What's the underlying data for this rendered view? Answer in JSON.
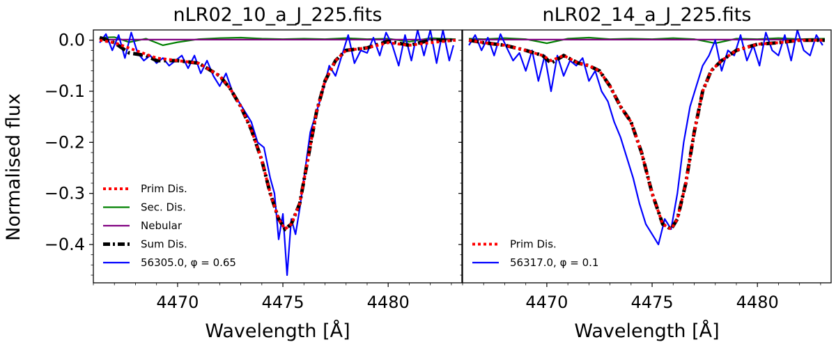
{
  "chart_data": {
    "type": "line",
    "ylabel": "Normalised flux",
    "xlabel": "Wavelength [Å]",
    "xlim": [
      4466,
      4483.5
    ],
    "ylim": [
      -0.475,
      0.02
    ],
    "xticks": [
      4470,
      4475,
      4480
    ],
    "yticks": [
      0.0,
      -0.1,
      -0.2,
      -0.3,
      -0.4
    ],
    "ytick_labels": [
      "0.0",
      "−0.1",
      "−0.2",
      "−0.3",
      "−0.4"
    ],
    "xtick_labels": [
      "4470",
      "4475",
      "4480"
    ],
    "panels": [
      {
        "title": "nLR02_10_a_J_225.fits",
        "legend": [
          "Prim Dis.",
          "Sec. Dis.",
          "Nebular",
          "Sum Dis.",
          "56305.0, φ = 0.65"
        ],
        "prim": {
          "x": [
            4466.3,
            4467,
            4468,
            4469,
            4470,
            4471,
            4472,
            4472.5,
            4473,
            4473.5,
            4474,
            4474.4,
            4474.8,
            4475.1,
            4475.4,
            4475.8,
            4476.2,
            4476.6,
            4477,
            4477.5,
            4478,
            4479,
            4480,
            4481,
            4482,
            4483.2
          ],
          "y": [
            0.0,
            -0.005,
            -0.02,
            -0.035,
            -0.04,
            -0.045,
            -0.07,
            -0.095,
            -0.13,
            -0.175,
            -0.235,
            -0.3,
            -0.35,
            -0.37,
            -0.36,
            -0.32,
            -0.23,
            -0.14,
            -0.08,
            -0.04,
            -0.02,
            -0.015,
            -0.005,
            -0.01,
            -0.005,
            0.0
          ]
        },
        "sec": {
          "x": [
            4466.3,
            4467,
            4467.7,
            4468.5,
            4469.3,
            4470,
            4471,
            4472,
            4473,
            4474,
            4475,
            4476,
            4477,
            4478,
            4479,
            4480,
            4481,
            4482,
            4483.2
          ],
          "y": [
            0.005,
            0.006,
            -0.004,
            0.003,
            -0.01,
            -0.004,
            0.002,
            0.004,
            0.005,
            0.003,
            0.002,
            0.003,
            0.002,
            0.004,
            0.002,
            0.003,
            -0.003,
            0.004,
            0.002
          ]
        },
        "nebular": {
          "x": [
            4466.3,
            4483.2
          ],
          "y": [
            0.001,
            0.001
          ]
        },
        "sum": {
          "x": [
            4466.3,
            4467,
            4467.7,
            4468.5,
            4469,
            4470,
            4471,
            4472,
            4472.5,
            4473,
            4473.5,
            4474,
            4474.4,
            4474.8,
            4475.1,
            4475.4,
            4475.8,
            4476.2,
            4476.6,
            4477,
            4477.5,
            4478,
            4479,
            4480,
            4481,
            4482,
            4483.2
          ],
          "y": [
            0.005,
            -0.005,
            -0.025,
            -0.03,
            -0.04,
            -0.04,
            -0.045,
            -0.07,
            -0.095,
            -0.13,
            -0.175,
            -0.235,
            -0.3,
            -0.35,
            -0.37,
            -0.36,
            -0.32,
            -0.23,
            -0.14,
            -0.08,
            -0.04,
            -0.02,
            -0.015,
            -0.002,
            -0.01,
            0.0,
            0.0
          ]
        },
        "obs": {
          "x": [
            4466.3,
            4466.6,
            4466.9,
            4467.2,
            4467.5,
            4467.8,
            4468.1,
            4468.4,
            4468.7,
            4469.0,
            4469.3,
            4469.6,
            4469.9,
            4470.2,
            4470.5,
            4470.8,
            4471.1,
            4471.4,
            4471.7,
            4472.0,
            4472.3,
            4472.6,
            4472.9,
            4473.2,
            4473.5,
            4473.8,
            4474.1,
            4474.4,
            4474.6,
            4474.8,
            4475.0,
            4475.2,
            4475.4,
            4475.6,
            4475.8,
            4476.0,
            4476.3,
            4476.6,
            4476.9,
            4477.2,
            4477.5,
            4477.8,
            4478.1,
            4478.4,
            4478.7,
            4479.0,
            4479.3,
            4479.6,
            4479.9,
            4480.2,
            4480.5,
            4480.8,
            4481.1,
            4481.4,
            4481.7,
            4482.0,
            4482.3,
            4482.6,
            4482.9,
            4483.1
          ],
          "y": [
            -0.005,
            0.012,
            -0.02,
            0.01,
            -0.035,
            0.015,
            -0.025,
            -0.04,
            -0.03,
            -0.045,
            -0.035,
            -0.05,
            -0.04,
            -0.03,
            -0.055,
            -0.03,
            -0.065,
            -0.04,
            -0.07,
            -0.09,
            -0.065,
            -0.1,
            -0.12,
            -0.14,
            -0.16,
            -0.2,
            -0.21,
            -0.27,
            -0.3,
            -0.39,
            -0.34,
            -0.46,
            -0.35,
            -0.38,
            -0.33,
            -0.27,
            -0.18,
            -0.14,
            -0.1,
            -0.05,
            -0.07,
            -0.03,
            0.01,
            -0.045,
            -0.02,
            -0.025,
            0.005,
            -0.03,
            0.015,
            -0.01,
            -0.05,
            0.01,
            -0.04,
            0.02,
            -0.03,
            0.02,
            -0.045,
            0.02,
            -0.04,
            -0.01
          ]
        }
      },
      {
        "title": "nLR02_14_a_J_225.fits",
        "legend": [
          "Prim Dis.",
          "56317.0, φ = 0.1"
        ],
        "prim": {
          "x": [
            4466.3,
            4467,
            4468,
            4469,
            4469.8,
            4470.2,
            4470.8,
            4471.5,
            4472,
            4472.5,
            4473,
            4473.5,
            4474,
            4474.5,
            4475,
            4475.5,
            4475.9,
            4476.2,
            4476.6,
            4477,
            4477.4,
            4477.8,
            4478.3,
            4479,
            4480,
            4481,
            4482,
            4483.2
          ],
          "y": [
            0.0,
            -0.005,
            -0.01,
            -0.02,
            -0.03,
            -0.04,
            -0.03,
            -0.045,
            -0.05,
            -0.06,
            -0.09,
            -0.13,
            -0.16,
            -0.22,
            -0.3,
            -0.36,
            -0.37,
            -0.35,
            -0.28,
            -0.18,
            -0.1,
            -0.06,
            -0.04,
            -0.02,
            -0.008,
            -0.005,
            0.0,
            0.0
          ]
        },
        "sec": {
          "x": [
            4466.3,
            4467,
            4468,
            4469,
            4470,
            4471,
            4472,
            4473,
            4474,
            4475,
            4476,
            4477,
            4478,
            4479,
            4480,
            4481,
            4482,
            4483.2
          ],
          "y": [
            0.003,
            0.002,
            0.004,
            0.002,
            -0.006,
            0.003,
            0.005,
            0.002,
            0.003,
            0.002,
            0.004,
            0.002,
            -0.006,
            0.003,
            0.002,
            0.004,
            0.002,
            0.003
          ]
        },
        "nebular": {
          "x": [
            4466.3,
            4483.2
          ],
          "y": [
            0.001,
            0.001
          ]
        },
        "sum": {
          "x": [
            4466.3,
            4467,
            4468,
            4469,
            4469.8,
            4470.2,
            4470.8,
            4471.5,
            4472,
            4472.5,
            4473,
            4473.5,
            4474,
            4474.5,
            4475,
            4475.5,
            4475.9,
            4476.2,
            4476.6,
            4477,
            4477.4,
            4477.8,
            4478.3,
            4479,
            4480,
            4481,
            4482,
            4483.2
          ],
          "y": [
            0.0,
            -0.005,
            -0.01,
            -0.02,
            -0.03,
            -0.045,
            -0.03,
            -0.045,
            -0.05,
            -0.06,
            -0.09,
            -0.13,
            -0.16,
            -0.22,
            -0.3,
            -0.36,
            -0.37,
            -0.35,
            -0.28,
            -0.18,
            -0.1,
            -0.06,
            -0.04,
            -0.02,
            -0.008,
            -0.005,
            0.0,
            0.0
          ]
        },
        "obs": {
          "x": [
            4466.3,
            4466.6,
            4466.9,
            4467.2,
            4467.5,
            4467.8,
            4468.1,
            4468.4,
            4468.7,
            4469.0,
            4469.3,
            4469.6,
            4469.9,
            4470.2,
            4470.5,
            4470.8,
            4471.1,
            4471.4,
            4471.7,
            4472.0,
            4472.3,
            4472.6,
            4472.9,
            4473.2,
            4473.5,
            4473.8,
            4474.1,
            4474.4,
            4474.7,
            4475.0,
            4475.3,
            4475.6,
            4475.9,
            4476.2,
            4476.5,
            4476.8,
            4477.1,
            4477.4,
            4477.7,
            4478.0,
            4478.3,
            4478.6,
            4478.9,
            4479.2,
            4479.5,
            4479.8,
            4480.1,
            4480.4,
            4480.7,
            4481.0,
            4481.3,
            4481.6,
            4481.9,
            4482.2,
            4482.5,
            4482.8,
            4483.1
          ],
          "y": [
            -0.01,
            0.01,
            -0.02,
            0.005,
            -0.03,
            0.012,
            -0.015,
            -0.04,
            -0.025,
            -0.06,
            -0.02,
            -0.08,
            -0.03,
            -0.1,
            -0.03,
            -0.07,
            -0.04,
            -0.05,
            -0.035,
            -0.08,
            -0.06,
            -0.1,
            -0.12,
            -0.16,
            -0.19,
            -0.23,
            -0.27,
            -0.32,
            -0.36,
            -0.38,
            -0.4,
            -0.35,
            -0.37,
            -0.3,
            -0.2,
            -0.13,
            -0.09,
            -0.05,
            -0.03,
            0.0,
            -0.06,
            -0.02,
            -0.03,
            0.01,
            -0.04,
            -0.01,
            -0.05,
            0.015,
            -0.02,
            -0.03,
            0.01,
            -0.04,
            0.02,
            -0.02,
            -0.03,
            0.01,
            -0.01
          ]
        }
      }
    ]
  },
  "colors": {
    "prim": "#ff0000",
    "sec": "#008000",
    "nebular": "#800080",
    "sum": "#000000",
    "obs": "#0000ff"
  }
}
